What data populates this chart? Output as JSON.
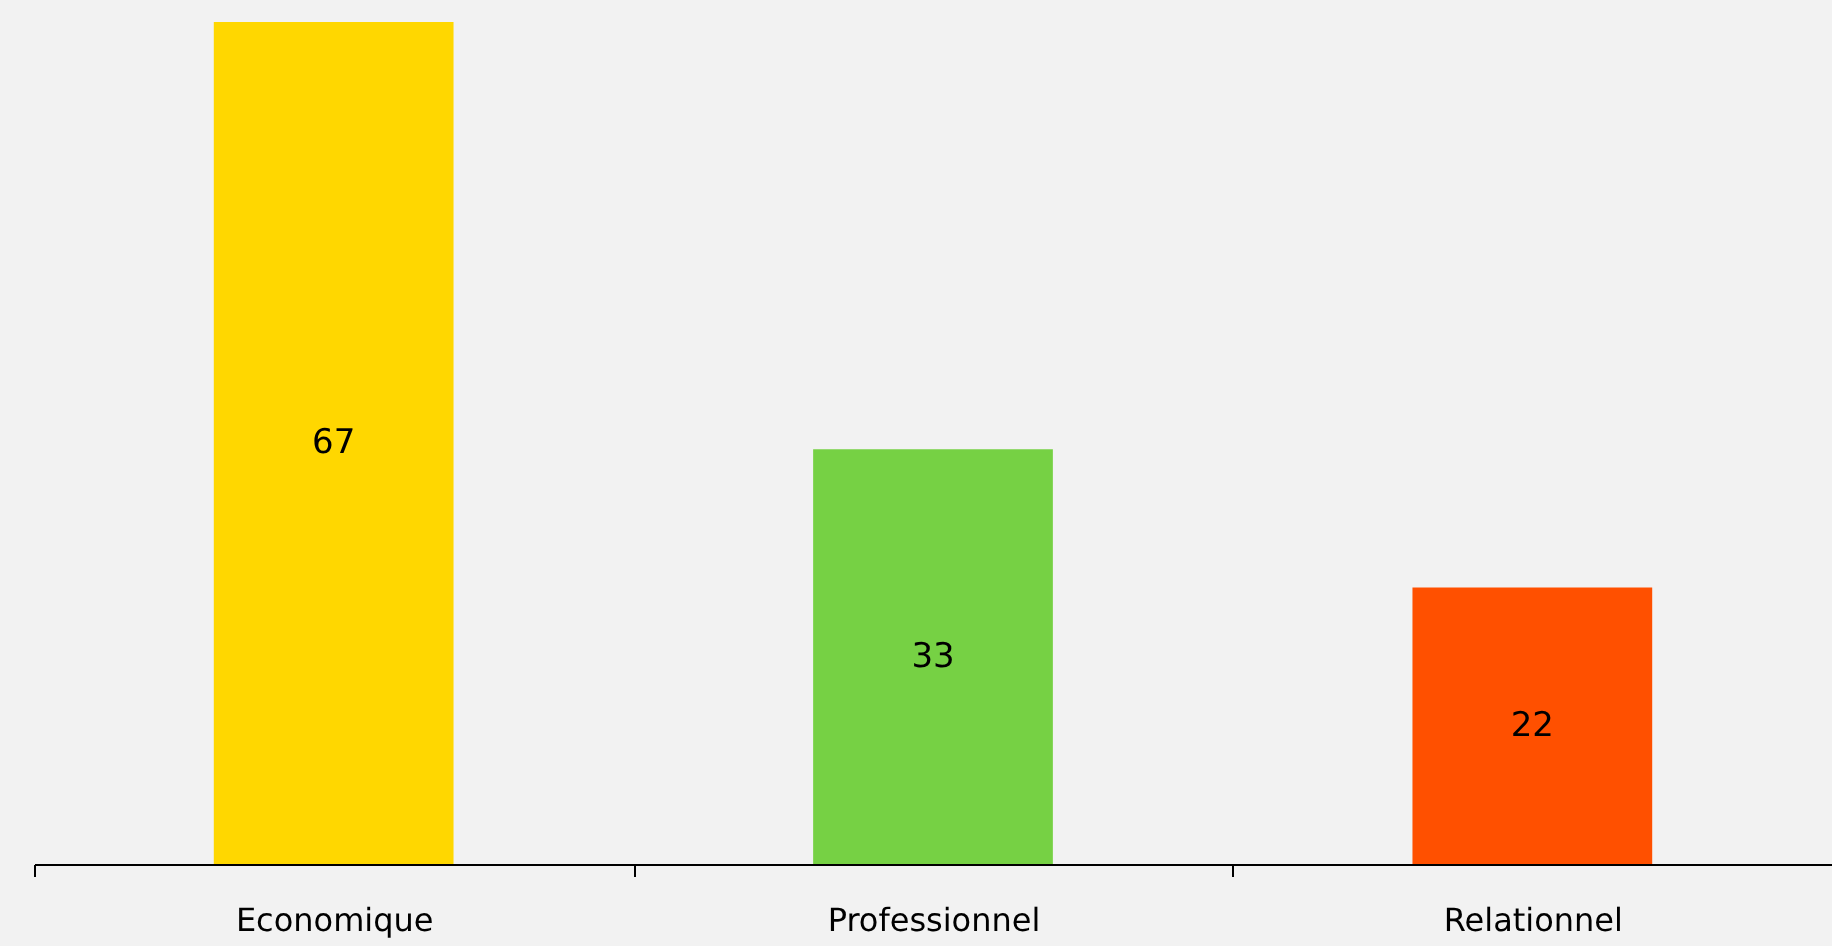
{
  "chart_data": {
    "type": "bar",
    "categories": [
      "Economique",
      "Professionnel",
      "Relationnel"
    ],
    "values": [
      67,
      33,
      22
    ],
    "colors": [
      "#ffd700",
      "#76d144",
      "#ff5000"
    ],
    "data_labels": true,
    "grid": false
  }
}
